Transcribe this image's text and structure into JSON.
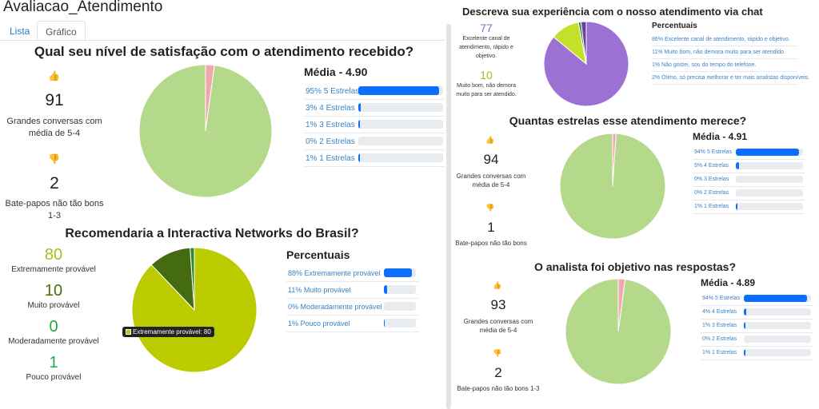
{
  "app_title": "Avaliacao_Atendimento",
  "tabs": [
    {
      "label": "Lista"
    },
    {
      "label": "Gráfico"
    }
  ],
  "q1": {
    "title": "Qual seu nível de satisfação com o atendimento recebido?",
    "good_count": "91",
    "good_label": "Grandes conversas com média de 5-4",
    "bad_count": "2",
    "bad_label": "Bate-papos não tão bons 1-3",
    "media": "Média - 4.90",
    "bars": [
      {
        "label": "95% 5 Estrelas",
        "value": 95
      },
      {
        "label": "3% 4 Estrelas",
        "value": 3
      },
      {
        "label": "1% 3 Estrelas",
        "value": 1
      },
      {
        "label": "0% 2 Estrelas",
        "value": 0
      },
      {
        "label": "1% 1 Estrelas",
        "value": 1
      }
    ],
    "pie_colors": [
      "#b5d98a",
      "#f4a6b0"
    ]
  },
  "q2": {
    "title": "Recomendaria a Interactiva Networks do Brasil?",
    "stats": [
      {
        "count": "80",
        "label": "Extremamente provável",
        "color": "#a8bd1a"
      },
      {
        "count": "10",
        "label": "Muito provável",
        "color": "#4a6a10"
      },
      {
        "count": "0",
        "label": "Moderadamente provável",
        "color": "#28a745"
      },
      {
        "count": "1",
        "label": "Pouco provável",
        "color": "#28a745"
      }
    ],
    "perc_title": "Percentuais",
    "bars": [
      {
        "label": "88% Extremamente provável",
        "value": 88
      },
      {
        "label": "11% Muito provável",
        "value": 11
      },
      {
        "label": "0% Moderadamente provável",
        "value": 0
      },
      {
        "label": "1% Pouco provável",
        "value": 1
      }
    ],
    "tooltip": "Extremamente provável: 80",
    "pie_colors": [
      "#bccb00",
      "#446b0f",
      "#7fb800",
      "#2e8b2e"
    ]
  },
  "q3": {
    "title": "Descreva sua experiência com o nosso atendimento via chat",
    "stats": [
      {
        "count": "77",
        "label": "Excelente canal de atendimento, rápido e objetivo.",
        "color": "#8a6cc8"
      },
      {
        "count": "10",
        "label": "Muito bom, não demora muito para ser atendido.",
        "color": "#a8bd1a"
      }
    ],
    "perc_title": "Percentuais",
    "items": [
      {
        "label": "86% Excelente canal de atendimento, rápido e objetivo."
      },
      {
        "label": "11% Muito bom, não demora muito para ser atendido."
      },
      {
        "label": "1% Não gostei, sou do tempo do telefone."
      },
      {
        "label": "2% Ótimo, só precisa melhorar e ter mais analistas disponíveis."
      }
    ],
    "pie_colors": [
      "#9b72d4",
      "#c5e02a",
      "#2e8b57",
      "#6a3fa0"
    ]
  },
  "q4": {
    "title": "Quantas estrelas esse atendimento merece?",
    "good_count": "94",
    "good_label": "Grandes conversas com média de 5-4",
    "bad_count": "1",
    "bad_label": "Bate-papos não tão bons",
    "media": "Média - 4.91",
    "bars": [
      {
        "label": "94% 5 Estrelas",
        "value": 94
      },
      {
        "label": "5% 4 Estrelas",
        "value": 5
      },
      {
        "label": "0% 3 Estrelas",
        "value": 0
      },
      {
        "label": "0% 2 Estrelas",
        "value": 0
      },
      {
        "label": "1% 1 Estrelas",
        "value": 1
      }
    ],
    "pie_colors": [
      "#b5d98a",
      "#f4a6b0"
    ]
  },
  "q5": {
    "title": "O analista foi objetivo nas respostas?",
    "good_count": "93",
    "good_label": "Grandes conversas com média de 5-4",
    "bad_count": "2",
    "bad_label": "Bate-papos não tão bons 1-3",
    "media": "Média - 4.89",
    "bars": [
      {
        "label": "94% 5 Estrelas",
        "value": 94
      },
      {
        "label": "4% 4 Estrelas",
        "value": 4
      },
      {
        "label": "1% 3 Estrelas",
        "value": 1
      },
      {
        "label": "0% 2 Estrelas",
        "value": 0
      },
      {
        "label": "1% 1 Estrelas",
        "value": 1
      }
    ],
    "pie_colors": [
      "#b5d98a",
      "#f4a6b0"
    ]
  },
  "chart_data": [
    {
      "type": "pie",
      "title": "Qual seu nível de satisfação com o atendimento recebido?",
      "categories": [
        "5-4",
        "1-3"
      ],
      "values": [
        91,
        2
      ]
    },
    {
      "type": "pie",
      "title": "Recomendaria a Interactiva Networks do Brasil?",
      "categories": [
        "Extremamente provável",
        "Muito provável",
        "Moderadamente provável",
        "Pouco provável"
      ],
      "values": [
        80,
        10,
        0,
        1
      ]
    },
    {
      "type": "pie",
      "title": "Descreva sua experiência com o nosso atendimento via chat",
      "categories": [
        "Excelente canal de atendimento, rápido e objetivo.",
        "Muito bom, não demora muito para ser atendido.",
        "Não gostei, sou do tempo do telefone.",
        "Ótimo, só precisa melhorar e ter mais analistas disponíveis."
      ],
      "values": [
        86,
        11,
        1,
        2
      ]
    },
    {
      "type": "pie",
      "title": "Quantas estrelas esse atendimento merece?",
      "categories": [
        "5-4",
        "1-3"
      ],
      "values": [
        94,
        1
      ]
    },
    {
      "type": "pie",
      "title": "O analista foi objetivo nas respostas?",
      "categories": [
        "5-4",
        "1-3"
      ],
      "values": [
        93,
        2
      ]
    }
  ]
}
